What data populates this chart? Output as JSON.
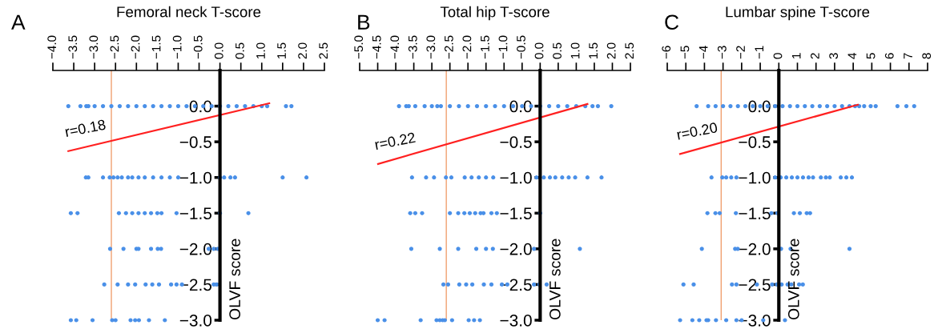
{
  "chart_data": [
    {
      "type": "scatter",
      "title": "Femoral neck T-score",
      "ylabel": "OLVF score",
      "xlim": [
        -4.0,
        2.5
      ],
      "xticks": [
        {
          "value": -4.0,
          "label": "−4.0"
        },
        {
          "value": -3.5,
          "label": "−3.5"
        },
        {
          "value": -3.0,
          "label": "−3.0"
        },
        {
          "value": -2.5,
          "label": "−2.5"
        },
        {
          "value": -2.0,
          "label": "−2.0"
        },
        {
          "value": -1.5,
          "label": "−1.5"
        },
        {
          "value": -1.0,
          "label": "−1.0"
        },
        {
          "value": -0.5,
          "label": "−0.5"
        },
        {
          "value": 0.0,
          "label": "0.0"
        },
        {
          "value": 0.5,
          "label": "0.5"
        },
        {
          "value": 1.0,
          "label": "1.0"
        },
        {
          "value": 1.5,
          "label": "1.5"
        },
        {
          "value": 2.0,
          "label": "2.0"
        },
        {
          "value": 2.5,
          "label": "2.5"
        }
      ],
      "ylim": [
        -3.0,
        0.5
      ],
      "yticks": [
        {
          "value": 0.0,
          "label": "0.0"
        },
        {
          "value": -0.5,
          "label": "−0.5"
        },
        {
          "value": -1.0,
          "label": "−1.0"
        },
        {
          "value": -1.5,
          "label": "−1.5"
        },
        {
          "value": -2.0,
          "label": "−2.0"
        },
        {
          "value": -2.5,
          "label": "−2.5"
        },
        {
          "value": -3.0,
          "label": "−3.0"
        }
      ],
      "ref_lines": [
        {
          "axis": "x",
          "value": -2.6,
          "color": "#f0a070"
        }
      ],
      "annotations": [
        "A",
        {
          "text": "r=0.18",
          "x": -3.63,
          "y": -0.63
        }
      ],
      "series": [
        {
          "marker": "circle",
          "color": "#4a90e8",
          "x": [
            -3.63,
            -3.34,
            -3.2,
            -3.15,
            -3.0,
            -2.8,
            -2.6,
            -2.4,
            -2.2,
            -2.0,
            -1.8,
            -1.6,
            -1.4,
            -1.2,
            -1.0,
            -0.8,
            -0.6,
            -0.4,
            -0.2,
            0.0,
            0.2,
            0.4,
            0.6,
            0.8,
            1.0,
            1.13,
            1.58,
            1.71,
            -3.21,
            -3.15,
            -2.8,
            -2.64,
            -2.55,
            -2.45,
            -2.35,
            -2.2,
            -2.1,
            -1.95,
            -1.8,
            -1.6,
            -1.4,
            -1.2,
            -1.0,
            0.0,
            0.1,
            0.25,
            0.36,
            1.5,
            2.07,
            -3.57,
            -3.41,
            -2.42,
            -2.25,
            -2.1,
            -1.95,
            -1.8,
            -1.65,
            -1.5,
            -1.4,
            -1.04,
            0.0,
            0.68,
            -2.63,
            -2.31,
            -2.0,
            -1.95,
            -1.65,
            -1.49,
            -1.41,
            -0.27,
            -0.15,
            -0.05,
            -2.77,
            -2.45,
            -2.2,
            -2.03,
            -1.78,
            -1.62,
            -1.46,
            -1.17,
            -1.04,
            -0.91,
            -0.15,
            -0.08,
            -3.57,
            -3.44,
            -3.05,
            -2.58,
            -2.5,
            -2.14,
            -2.03,
            -1.94,
            -1.7,
            -1.32
          ],
          "values": [
            0,
            0,
            0,
            0,
            0,
            0,
            0,
            0,
            0,
            0,
            0,
            0,
            0,
            0,
            0,
            0,
            0,
            0,
            0,
            0,
            0,
            0,
            0,
            0,
            0,
            0,
            0,
            0,
            -1,
            -1,
            -1,
            -1,
            -1,
            -1,
            -1,
            -1,
            -1,
            -1,
            -1,
            -1,
            -1,
            -1,
            -1,
            -1,
            -1,
            -1,
            -1,
            -1,
            -1,
            -1.5,
            -1.5,
            -1.5,
            -1.5,
            -1.5,
            -1.5,
            -1.5,
            -1.5,
            -1.5,
            -1.5,
            -1.5,
            -1.5,
            -1.5,
            -2,
            -2,
            -2,
            -2,
            -2,
            -2,
            -2,
            -2,
            -2,
            -2,
            -2.5,
            -2.5,
            -2.5,
            -2.5,
            -2.5,
            -2.5,
            -2.5,
            -2.5,
            -2.5,
            -2.5,
            -2.5,
            -2.5,
            -3,
            -3,
            -3,
            -3,
            -3,
            -3,
            -3,
            -3,
            -3,
            -3
          ]
        },
        {
          "type": "line",
          "color": "#ff2020",
          "x": [
            -3.63,
            1.18
          ],
          "values": [
            -0.63,
            0.04
          ]
        }
      ]
    },
    {
      "type": "scatter",
      "title": "Total hip T-score",
      "ylabel": "OLVF score",
      "xlim": [
        -5.0,
        2.5
      ],
      "xticks": [
        {
          "value": -5.0,
          "label": "−5.0"
        },
        {
          "value": -4.5,
          "label": "−4.5"
        },
        {
          "value": -4.0,
          "label": "−4.0"
        },
        {
          "value": -3.5,
          "label": "−3.5"
        },
        {
          "value": -3.0,
          "label": "−3.0"
        },
        {
          "value": -2.5,
          "label": "−2.5"
        },
        {
          "value": -2.0,
          "label": "−2.0"
        },
        {
          "value": -1.5,
          "label": "−1.5"
        },
        {
          "value": -1.0,
          "label": "−1.0"
        },
        {
          "value": -0.5,
          "label": "−0.5"
        },
        {
          "value": 0.0,
          "label": "0.0"
        },
        {
          "value": 0.5,
          "label": "0.5"
        },
        {
          "value": 1.0,
          "label": "1.0"
        },
        {
          "value": 1.5,
          "label": "1.5"
        },
        {
          "value": 2.0,
          "label": "2.0"
        },
        {
          "value": 2.5,
          "label": "2.5"
        }
      ],
      "ylim": [
        -3.0,
        0.5
      ],
      "yticks": [
        {
          "value": 0.0,
          "label": "0.0"
        },
        {
          "value": -0.5,
          "label": "−0.5"
        },
        {
          "value": -1.0,
          "label": "−1.0"
        },
        {
          "value": -1.5,
          "label": "−1.5"
        },
        {
          "value": -2.0,
          "label": "−2.0"
        },
        {
          "value": -2.5,
          "label": "−2.5"
        },
        {
          "value": -3.0,
          "label": "−3.0"
        }
      ],
      "ref_lines": [
        {
          "axis": "x",
          "value": -2.6,
          "color": "#f0a070"
        }
      ],
      "annotations": [
        "B",
        {
          "text": "r=0.22",
          "x": -4.49,
          "y": -0.81
        }
      ],
      "series": [
        {
          "marker": "circle",
          "color": "#4a90e8",
          "x": [
            -3.91,
            -3.71,
            -3.64,
            -3.46,
            -3.2,
            -3.0,
            -2.85,
            -2.75,
            -2.5,
            -2.25,
            -2.0,
            -1.75,
            -1.5,
            -1.25,
            -1.0,
            -0.75,
            -0.5,
            -0.25,
            0.0,
            0.25,
            0.5,
            0.75,
            1.0,
            1.25,
            1.45,
            1.6,
            1.97,
            -3.55,
            -3.16,
            -2.94,
            -2.61,
            -2.46,
            -2.09,
            -1.9,
            -1.7,
            -1.5,
            -1.3,
            -0.1,
            0.1,
            0.27,
            0.42,
            0.61,
            0.79,
            0.97,
            1.31,
            1.7,
            -3.6,
            -3.46,
            -3.27,
            -2.5,
            -2.27,
            -2.1,
            -1.95,
            -1.8,
            -1.65,
            -1.57,
            -1.35,
            -1.2,
            0.0,
            -3.57,
            -2.78,
            -2.27,
            -1.77,
            -1.5,
            -1.31,
            -0.17,
            1.1,
            -2.68,
            -2.55,
            -2.24,
            -2.05,
            -1.88,
            -1.56,
            -1.35,
            -1.06,
            -0.91,
            -0.17,
            -0.02,
            0.18,
            -4.5,
            -4.31,
            -3.31,
            -2.87,
            -2.78,
            -2.7,
            -2.64,
            -2.44,
            -1.98,
            -1.83,
            -1.67
          ],
          "values": [
            0,
            0,
            0,
            0,
            0,
            0,
            0,
            0,
            0,
            0,
            0,
            0,
            0,
            0,
            0,
            0,
            0,
            0,
            0,
            0,
            0,
            0,
            0,
            0,
            0,
            0,
            0,
            -1,
            -1,
            -1,
            -1,
            -1,
            -1,
            -1,
            -1,
            -1,
            -1,
            -1,
            -1,
            -1,
            -1,
            -1,
            -1,
            -1,
            -1,
            -1,
            -1.5,
            -1.5,
            -1.5,
            -1.5,
            -1.5,
            -1.5,
            -1.5,
            -1.5,
            -1.5,
            -1.5,
            -1.5,
            -1.5,
            -1.5,
            -2,
            -2,
            -2,
            -2,
            -2,
            -2,
            -2,
            -2,
            -2.5,
            -2.5,
            -2.5,
            -2.5,
            -2.5,
            -2.5,
            -2.5,
            -2.5,
            -2.5,
            -2.5,
            -2.5,
            -2.5,
            -3,
            -3,
            -3,
            -3,
            -3,
            -3,
            -3,
            -3,
            -3,
            -3,
            -3
          ]
        },
        {
          "type": "line",
          "color": "#ff2020",
          "x": [
            -4.49,
            1.31
          ],
          "values": [
            -0.81,
            0.03
          ]
        }
      ]
    },
    {
      "type": "scatter",
      "title": "Lumbar spine T-score",
      "ylabel": "OLVF score",
      "xlim": [
        -6,
        8
      ],
      "xticks": [
        {
          "value": -6,
          "label": "−6"
        },
        {
          "value": -5,
          "label": "−5"
        },
        {
          "value": -4,
          "label": "−4"
        },
        {
          "value": -3,
          "label": "−3"
        },
        {
          "value": -2,
          "label": "−2"
        },
        {
          "value": -1,
          "label": "−1"
        },
        0,
        1,
        2,
        3,
        4,
        5,
        6,
        7,
        8
      ],
      "ylim": [
        -3.0,
        0.5
      ],
      "yticks": [
        {
          "value": 0.0,
          "label": "0.0"
        },
        {
          "value": -0.5,
          "label": "−0.5"
        },
        {
          "value": -1.0,
          "label": "−1.0"
        },
        {
          "value": -1.5,
          "label": "−1.5"
        },
        {
          "value": -2.0,
          "label": "−2.0"
        },
        {
          "value": -2.5,
          "label": "−2.5"
        },
        {
          "value": -3.0,
          "label": "−3.0"
        }
      ],
      "ref_lines": [
        {
          "axis": "x",
          "value": -3.1,
          "color": "#f0a070"
        }
      ],
      "annotations": [
        "C",
        {
          "text": "r=0.20",
          "x": -5.31,
          "y": -0.67
        }
      ],
      "series": [
        {
          "marker": "circle",
          "color": "#4a90e8",
          "x": [
            -4.42,
            -3.8,
            -3.4,
            -3.0,
            -2.6,
            -2.2,
            -1.8,
            -1.4,
            -1.0,
            -0.6,
            -0.2,
            0.2,
            0.6,
            1.0,
            1.4,
            1.8,
            2.2,
            2.6,
            3.0,
            3.4,
            3.8,
            4.1,
            4.32,
            4.59,
            4.94,
            5.21,
            6.38,
            6.86,
            7.28,
            -3.62,
            -3.04,
            -2.83,
            -2.56,
            -2.28,
            -0.2,
            0.1,
            0.4,
            0.7,
            1.0,
            1.3,
            1.6,
            1.84,
            2.26,
            2.53,
            2.74,
            3.33,
            3.63,
            3.93,
            -3.84,
            -3.41,
            -3.18,
            -2.31,
            -0.4,
            -0.08,
            0.81,
            1.13,
            1.5,
            1.68,
            -4.14,
            -2.35,
            -2.21,
            0.12,
            0.63,
            3.8,
            -5.13,
            -4.58,
            -2.52,
            -2.28,
            -1.18,
            -0.36,
            -0.1,
            0.15,
            0.47,
            0.67,
            1.09,
            1.29,
            -5.31,
            -4.65,
            -4.28,
            -3.89,
            -3.8,
            -3.38,
            -2.83,
            -2.28,
            -2.0,
            -0.84,
            0.33
          ],
          "values": [
            0,
            0,
            0,
            0,
            0,
            0,
            0,
            0,
            0,
            0,
            0,
            0,
            0,
            0,
            0,
            0,
            0,
            0,
            0,
            0,
            0,
            0,
            0,
            0,
            0,
            0,
            0,
            0,
            0,
            -1,
            -1,
            -1,
            -1,
            -1,
            -1,
            -1,
            -1,
            -1,
            -1,
            -1,
            -1,
            -1,
            -1,
            -1,
            -1,
            -1,
            -1,
            -1,
            -1.5,
            -1.5,
            -1.5,
            -1.5,
            -1.5,
            -1.5,
            -1.5,
            -1.5,
            -1.5,
            -1.5,
            -2,
            -2,
            -2,
            -2,
            -2,
            -2,
            -2.5,
            -2.5,
            -2.5,
            -2.5,
            -2.5,
            -2.5,
            -2.5,
            -2.5,
            -2.5,
            -2.5,
            -2.5,
            -2.5,
            -3,
            -3,
            -3,
            -3,
            -3,
            -3,
            -3,
            -3,
            -3,
            -3,
            -3
          ]
        },
        {
          "type": "line",
          "color": "#ff2020",
          "x": [
            -5.31,
            4.25
          ],
          "values": [
            -0.67,
            0.02
          ]
        }
      ]
    }
  ]
}
